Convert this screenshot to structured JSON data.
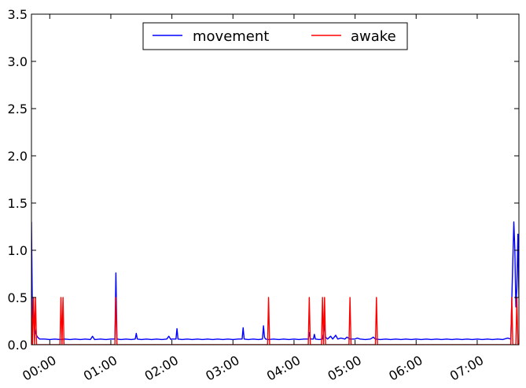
{
  "chart_data": {
    "type": "line",
    "x_unit": "time (HH:MM)",
    "xlim": [
      "23:42",
      "07:41"
    ],
    "ylim": [
      0.0,
      3.5
    ],
    "grid": false,
    "legend_position": "top-center",
    "x_tick_labels": [
      "00:00",
      "01:00",
      "02:00",
      "03:00",
      "04:00",
      "05:00",
      "06:00",
      "07:00"
    ],
    "y_tick_labels": [
      "0.0",
      "0.5",
      "1.0",
      "1.5",
      "2.0",
      "2.5",
      "3.0",
      "3.5"
    ],
    "series": [
      {
        "name": "movement",
        "color": "#0000ff",
        "points": [
          [
            "23:42",
            1.3
          ],
          [
            "23:43",
            0.25
          ],
          [
            "23:44",
            0.4
          ],
          [
            "23:45",
            0.2
          ],
          [
            "23:46",
            0.12
          ],
          [
            "23:48",
            0.08
          ],
          [
            "23:50",
            0.06
          ],
          [
            "23:55",
            0.06
          ],
          [
            "00:00",
            0.055
          ],
          [
            "00:05",
            0.06
          ],
          [
            "00:10",
            0.055
          ],
          [
            "00:15",
            0.06
          ],
          [
            "00:20",
            0.055
          ],
          [
            "00:25",
            0.06
          ],
          [
            "00:30",
            0.055
          ],
          [
            "00:35",
            0.06
          ],
          [
            "00:40",
            0.055
          ],
          [
            "00:42",
            0.09
          ],
          [
            "00:44",
            0.055
          ],
          [
            "00:50",
            0.06
          ],
          [
            "00:55",
            0.055
          ],
          [
            "01:00",
            0.06
          ],
          [
            "01:04",
            0.06
          ],
          [
            "01:05",
            0.76
          ],
          [
            "01:06",
            0.06
          ],
          [
            "01:10",
            0.055
          ],
          [
            "01:15",
            0.06
          ],
          [
            "01:20",
            0.055
          ],
          [
            "01:24",
            0.06
          ],
          [
            "01:25",
            0.12
          ],
          [
            "01:26",
            0.06
          ],
          [
            "01:30",
            0.055
          ],
          [
            "01:35",
            0.06
          ],
          [
            "01:40",
            0.055
          ],
          [
            "01:45",
            0.06
          ],
          [
            "01:50",
            0.055
          ],
          [
            "01:55",
            0.06
          ],
          [
            "01:57",
            0.09
          ],
          [
            "01:59",
            0.055
          ],
          [
            "02:00",
            0.06
          ],
          [
            "02:04",
            0.06
          ],
          [
            "02:05",
            0.17
          ],
          [
            "02:06",
            0.06
          ],
          [
            "02:10",
            0.055
          ],
          [
            "02:15",
            0.06
          ],
          [
            "02:20",
            0.055
          ],
          [
            "02:25",
            0.06
          ],
          [
            "02:30",
            0.055
          ],
          [
            "02:35",
            0.06
          ],
          [
            "02:40",
            0.055
          ],
          [
            "02:45",
            0.06
          ],
          [
            "02:50",
            0.055
          ],
          [
            "02:55",
            0.06
          ],
          [
            "03:00",
            0.055
          ],
          [
            "03:05",
            0.06
          ],
          [
            "03:09",
            0.06
          ],
          [
            "03:10",
            0.18
          ],
          [
            "03:11",
            0.06
          ],
          [
            "03:15",
            0.055
          ],
          [
            "03:20",
            0.06
          ],
          [
            "03:25",
            0.055
          ],
          [
            "03:29",
            0.06
          ],
          [
            "03:30",
            0.2
          ],
          [
            "03:31",
            0.08
          ],
          [
            "03:32",
            0.06
          ],
          [
            "03:35",
            0.055
          ],
          [
            "03:40",
            0.06
          ],
          [
            "03:45",
            0.055
          ],
          [
            "03:50",
            0.06
          ],
          [
            "03:55",
            0.055
          ],
          [
            "04:00",
            0.06
          ],
          [
            "04:05",
            0.055
          ],
          [
            "04:10",
            0.06
          ],
          [
            "04:14",
            0.06
          ],
          [
            "04:15",
            0.13
          ],
          [
            "04:16",
            0.06
          ],
          [
            "04:19",
            0.06
          ],
          [
            "04:20",
            0.11
          ],
          [
            "04:21",
            0.06
          ],
          [
            "04:25",
            0.055
          ],
          [
            "04:28",
            0.06
          ],
          [
            "04:30",
            0.21
          ],
          [
            "04:31",
            0.08
          ],
          [
            "04:33",
            0.06
          ],
          [
            "04:36",
            0.09
          ],
          [
            "04:38",
            0.06
          ],
          [
            "04:41",
            0.1
          ],
          [
            "04:43",
            0.06
          ],
          [
            "04:46",
            0.07
          ],
          [
            "04:50",
            0.06
          ],
          [
            "04:52",
            0.08
          ],
          [
            "04:55",
            0.06
          ],
          [
            "05:00",
            0.06
          ],
          [
            "05:02",
            0.07
          ],
          [
            "05:05",
            0.06
          ],
          [
            "05:10",
            0.055
          ],
          [
            "05:15",
            0.06
          ],
          [
            "05:18",
            0.08
          ],
          [
            "05:20",
            0.06
          ],
          [
            "05:25",
            0.055
          ],
          [
            "05:30",
            0.06
          ],
          [
            "05:35",
            0.055
          ],
          [
            "05:40",
            0.06
          ],
          [
            "05:45",
            0.055
          ],
          [
            "05:50",
            0.06
          ],
          [
            "05:55",
            0.055
          ],
          [
            "06:00",
            0.06
          ],
          [
            "06:05",
            0.055
          ],
          [
            "06:10",
            0.06
          ],
          [
            "06:15",
            0.055
          ],
          [
            "06:20",
            0.06
          ],
          [
            "06:25",
            0.055
          ],
          [
            "06:30",
            0.06
          ],
          [
            "06:35",
            0.055
          ],
          [
            "06:40",
            0.06
          ],
          [
            "06:45",
            0.055
          ],
          [
            "06:50",
            0.06
          ],
          [
            "06:55",
            0.055
          ],
          [
            "07:00",
            0.06
          ],
          [
            "07:05",
            0.055
          ],
          [
            "07:10",
            0.06
          ],
          [
            "07:15",
            0.055
          ],
          [
            "07:20",
            0.06
          ],
          [
            "07:25",
            0.055
          ],
          [
            "07:30",
            0.07
          ],
          [
            "07:33",
            0.06
          ],
          [
            "07:36",
            1.3
          ],
          [
            "07:37",
            1.0
          ],
          [
            "07:38",
            0.4
          ],
          [
            "07:39",
            0.6
          ],
          [
            "07:40",
            1.17
          ],
          [
            "07:41",
            0.5
          ]
        ]
      },
      {
        "name": "awake",
        "color": "#ff0000",
        "points": [
          [
            "23:42",
            0.5
          ],
          [
            "23:43",
            0.0
          ],
          [
            "23:44",
            0.5
          ],
          [
            "23:45",
            0.0
          ],
          [
            "23:46",
            0.5
          ],
          [
            "23:47",
            0.0
          ],
          [
            "00:10",
            0.0
          ],
          [
            "00:11",
            0.5
          ],
          [
            "00:12",
            0.0
          ],
          [
            "00:12",
            0.0
          ],
          [
            "00:13",
            0.5
          ],
          [
            "00:14",
            0.0
          ],
          [
            "01:04",
            0.0
          ],
          [
            "01:05",
            0.5
          ],
          [
            "01:06",
            0.0
          ],
          [
            "03:34",
            0.0
          ],
          [
            "03:35",
            0.5
          ],
          [
            "03:36",
            0.0
          ],
          [
            "04:14",
            0.0
          ],
          [
            "04:15",
            0.5
          ],
          [
            "04:16",
            0.0
          ],
          [
            "04:27",
            0.0
          ],
          [
            "04:28",
            0.5
          ],
          [
            "04:29",
            0.0
          ],
          [
            "04:30",
            0.5
          ],
          [
            "04:31",
            0.0
          ],
          [
            "04:54",
            0.0
          ],
          [
            "04:55",
            0.5
          ],
          [
            "04:56",
            0.0
          ],
          [
            "05:20",
            0.0
          ],
          [
            "05:21",
            0.5
          ],
          [
            "05:22",
            0.0
          ],
          [
            "07:33",
            0.0
          ],
          [
            "07:34",
            0.5
          ],
          [
            "07:35",
            0.0
          ],
          [
            "07:38",
            0.0
          ],
          [
            "07:39",
            0.5
          ],
          [
            "07:40",
            0.0
          ],
          [
            "07:41",
            0.0
          ]
        ]
      }
    ]
  }
}
